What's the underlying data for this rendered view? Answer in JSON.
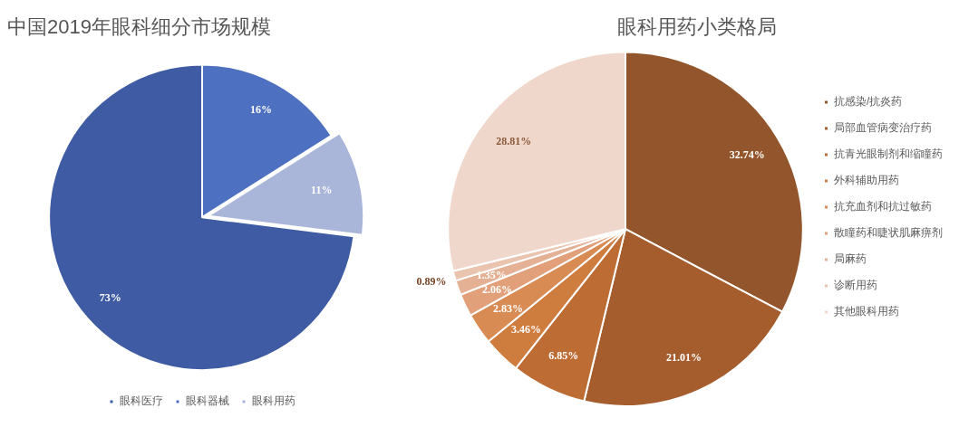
{
  "chart_data": [
    {
      "type": "pie",
      "title": "中国2019年眼科细分市场规模",
      "categories": [
        "眼科医疗",
        "眼科器械",
        "眼科用药"
      ],
      "values": [
        73,
        16,
        11
      ],
      "colors": [
        "#3e5ba3",
        "#4d70c0",
        "#aab5da"
      ],
      "value_labels": [
        "73%",
        "16%",
        "11%"
      ],
      "legend": "bottom"
    },
    {
      "type": "pie",
      "title": "眼科用药小类格局",
      "categories": [
        "抗感染/抗炎药",
        "局部血管病变治疗药",
        "抗青光眼制剂和缩瞳药",
        "外科辅助用药",
        "抗充血剂和抗过敏药",
        "散瞳药和睫状肌麻痹剂",
        "局麻药",
        "诊断用药",
        "其他眼科用药"
      ],
      "values": [
        32.74,
        21.01,
        6.85,
        3.46,
        2.83,
        2.06,
        1.35,
        0.89,
        28.81
      ],
      "colors": [
        "#93552b",
        "#a55d2d",
        "#bd6c34",
        "#cf7c3f",
        "#d98b54",
        "#e1a079",
        "#e5b195",
        "#eac4af",
        "#f0d7cb"
      ],
      "value_labels": [
        "32.74%",
        "21.01%",
        "6.85%",
        "3.46%",
        "2.83%",
        "2.06%",
        "1.35%",
        "0.89%",
        "28.81%"
      ],
      "legend": "right"
    }
  ]
}
